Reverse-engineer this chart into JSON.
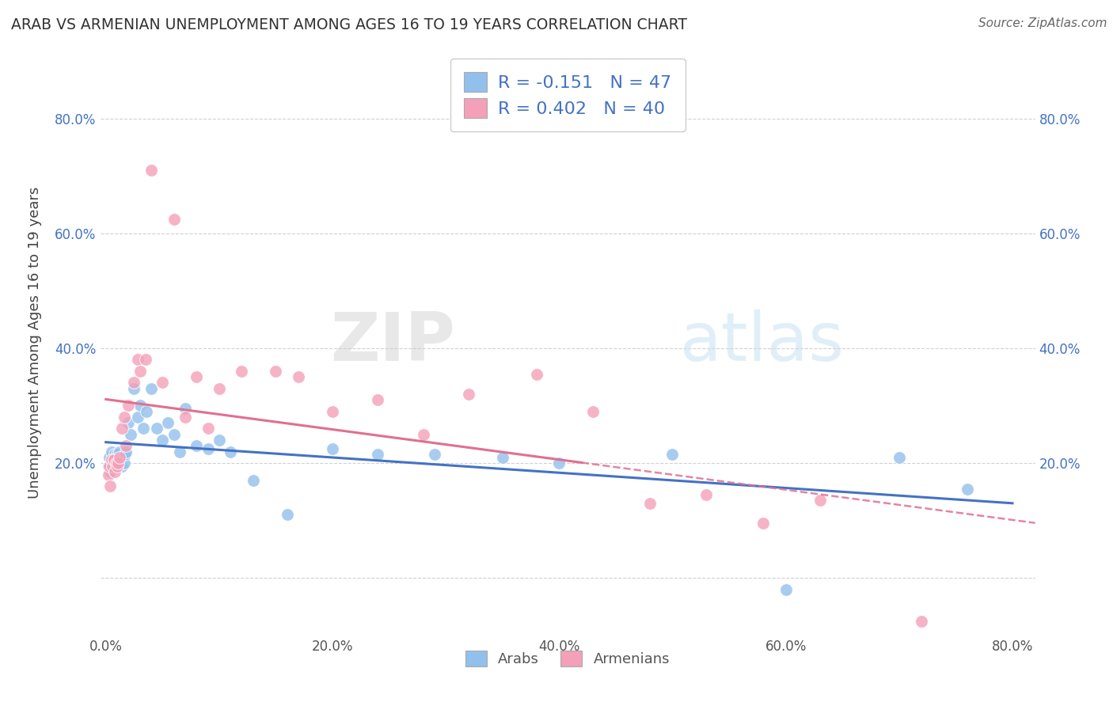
{
  "title": "ARAB VS ARMENIAN UNEMPLOYMENT AMONG AGES 16 TO 19 YEARS CORRELATION CHART",
  "source": "Source: ZipAtlas.com",
  "ylabel": "Unemployment Among Ages 16 to 19 years",
  "xlim": [
    -0.005,
    0.82
  ],
  "ylim": [
    -0.1,
    0.92
  ],
  "xticks": [
    0.0,
    0.2,
    0.4,
    0.6,
    0.8
  ],
  "xtick_labels": [
    "0.0%",
    "20.0%",
    "40.0%",
    "60.0%",
    "80.0%"
  ],
  "yticks": [
    0.0,
    0.2,
    0.4,
    0.6,
    0.8
  ],
  "ytick_labels": [
    "",
    "20.0%",
    "40.0%",
    "60.0%",
    "80.0%"
  ],
  "arab_R": -0.151,
  "arab_N": 47,
  "armenian_R": 0.402,
  "armenian_N": 40,
  "arab_color": "#92C0ED",
  "armenian_color": "#F4A0B8",
  "arab_line_color": "#4472C4",
  "armenian_line_color": "#E07090",
  "legend_labels": [
    "Arabs",
    "Armenians"
  ],
  "watermark": "ZIPatlas",
  "arab_x": [
    0.002,
    0.003,
    0.004,
    0.005,
    0.006,
    0.007,
    0.008,
    0.009,
    0.01,
    0.01,
    0.011,
    0.012,
    0.013,
    0.014,
    0.015,
    0.016,
    0.017,
    0.018,
    0.02,
    0.022,
    0.025,
    0.028,
    0.03,
    0.033,
    0.036,
    0.04,
    0.045,
    0.05,
    0.055,
    0.06,
    0.065,
    0.07,
    0.08,
    0.09,
    0.1,
    0.11,
    0.13,
    0.16,
    0.2,
    0.24,
    0.29,
    0.35,
    0.4,
    0.5,
    0.6,
    0.7,
    0.76
  ],
  "arab_y": [
    0.195,
    0.21,
    0.185,
    0.22,
    0.2,
    0.195,
    0.215,
    0.205,
    0.215,
    0.21,
    0.2,
    0.22,
    0.205,
    0.195,
    0.21,
    0.2,
    0.215,
    0.22,
    0.27,
    0.25,
    0.33,
    0.28,
    0.3,
    0.26,
    0.29,
    0.33,
    0.26,
    0.24,
    0.27,
    0.25,
    0.22,
    0.295,
    0.23,
    0.225,
    0.24,
    0.22,
    0.17,
    0.11,
    0.225,
    0.215,
    0.215,
    0.21,
    0.2,
    0.215,
    -0.02,
    0.21,
    0.155
  ],
  "armenian_x": [
    0.002,
    0.003,
    0.004,
    0.005,
    0.006,
    0.007,
    0.008,
    0.009,
    0.01,
    0.011,
    0.012,
    0.014,
    0.016,
    0.018,
    0.02,
    0.025,
    0.028,
    0.03,
    0.035,
    0.04,
    0.05,
    0.06,
    0.07,
    0.08,
    0.09,
    0.1,
    0.12,
    0.15,
    0.17,
    0.2,
    0.24,
    0.28,
    0.32,
    0.38,
    0.43,
    0.48,
    0.53,
    0.58,
    0.63,
    0.72
  ],
  "armenian_y": [
    0.18,
    0.195,
    0.16,
    0.205,
    0.195,
    0.205,
    0.185,
    0.2,
    0.195,
    0.2,
    0.21,
    0.26,
    0.28,
    0.23,
    0.3,
    0.34,
    0.38,
    0.36,
    0.38,
    0.71,
    0.34,
    0.625,
    0.28,
    0.35,
    0.26,
    0.33,
    0.36,
    0.36,
    0.35,
    0.29,
    0.31,
    0.25,
    0.32,
    0.355,
    0.29,
    0.13,
    0.145,
    0.095,
    0.135,
    -0.075
  ],
  "armenian_line_end_solid": 0.42,
  "armenian_line_start": 0.0,
  "arab_line_start": 0.0,
  "arab_line_end": 0.8
}
